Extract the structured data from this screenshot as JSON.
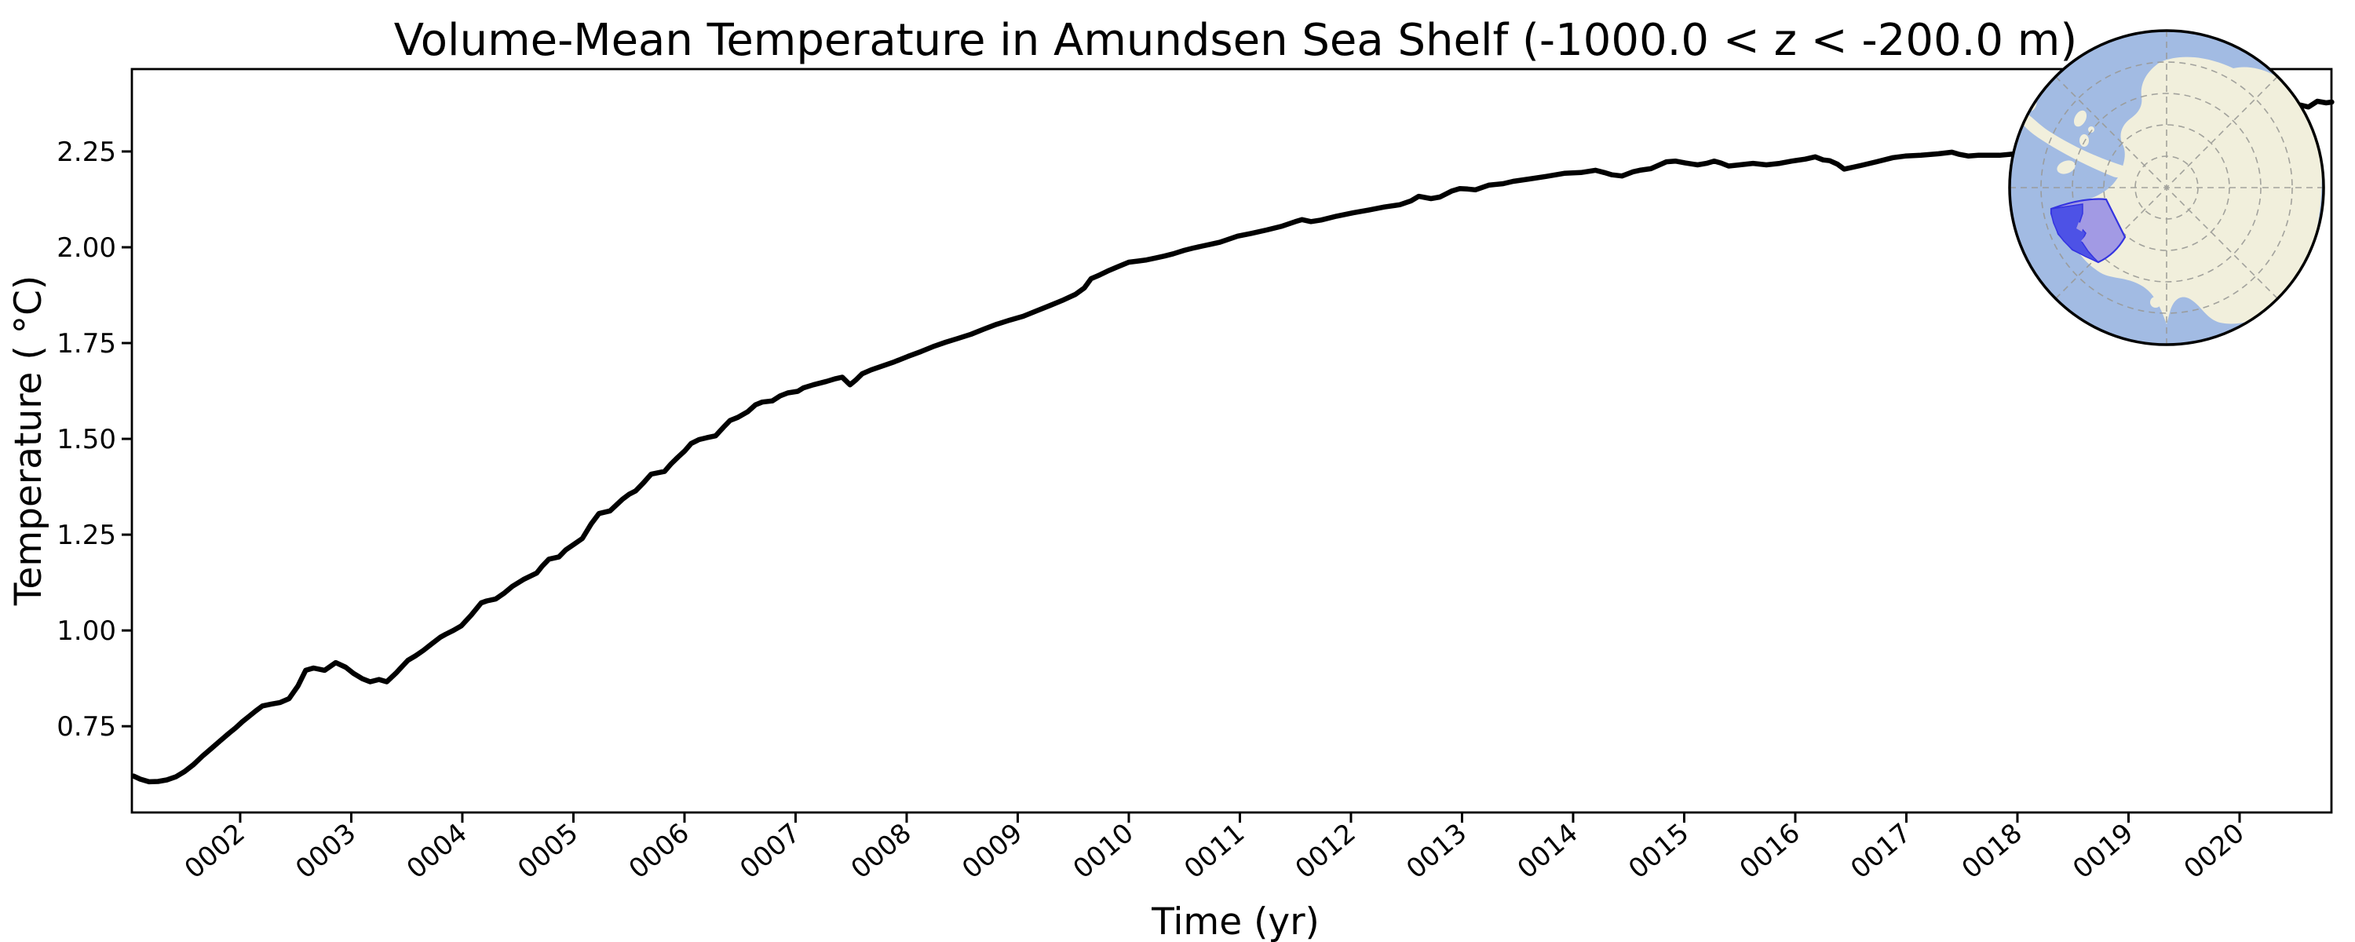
{
  "figure": {
    "background": "#ffffff",
    "kind": "matplotlib-style time-series figure with polar inset map"
  },
  "chart_data": {
    "type": "line",
    "title": "Volume-Mean Temperature in Amundsen Sea Shelf (-1000.0 < z < -200.0 m)",
    "xlabel": "Time (yr)",
    "ylabel": "Temperature ( °C)",
    "grid": false,
    "legend": "none",
    "xlim": [
      1.025,
      20.827
    ],
    "ylim": [
      0.525,
      2.465
    ],
    "x_ticks": [
      2,
      3,
      4,
      5,
      6,
      7,
      8,
      9,
      10,
      11,
      12,
      13,
      14,
      15,
      16,
      17,
      18,
      19,
      20
    ],
    "x_tick_labels": [
      "0002",
      "0003",
      "0004",
      "0005",
      "0006",
      "0007",
      "0008",
      "0009",
      "0010",
      "0011",
      "0012",
      "0013",
      "0014",
      "0015",
      "0016",
      "0017",
      "0018",
      "0019",
      "0020"
    ],
    "x_tick_rotation_deg": -40,
    "y_ticks": [
      0.75,
      1.0,
      1.25,
      1.5,
      1.75,
      2.0,
      2.25
    ],
    "y_tick_labels": [
      "0.75",
      "1.00",
      "1.25",
      "1.50",
      "1.75",
      "2.00",
      "2.25"
    ],
    "line_color": "#000000",
    "line_width": 6.5,
    "series": [
      {
        "name": "volume-mean temperature",
        "units": "degC",
        "points": [
          [
            1.04,
            0.62
          ],
          [
            1.1,
            0.612
          ],
          [
            1.18,
            0.605
          ],
          [
            1.26,
            0.606
          ],
          [
            1.34,
            0.61
          ],
          [
            1.42,
            0.618
          ],
          [
            1.5,
            0.632
          ],
          [
            1.58,
            0.65
          ],
          [
            1.66,
            0.672
          ],
          [
            1.74,
            0.692
          ],
          [
            1.82,
            0.712
          ],
          [
            1.9,
            0.732
          ],
          [
            1.96,
            0.746
          ],
          [
            2.02,
            0.762
          ],
          [
            2.08,
            0.776
          ],
          [
            2.14,
            0.79
          ],
          [
            2.2,
            0.803
          ],
          [
            2.28,
            0.808
          ],
          [
            2.36,
            0.812
          ],
          [
            2.44,
            0.822
          ],
          [
            2.52,
            0.855
          ],
          [
            2.59,
            0.896
          ],
          [
            2.66,
            0.902
          ],
          [
            2.76,
            0.896
          ],
          [
            2.86,
            0.916
          ],
          [
            2.95,
            0.904
          ],
          [
            3.02,
            0.888
          ],
          [
            3.1,
            0.874
          ],
          [
            3.17,
            0.866
          ],
          [
            3.25,
            0.872
          ],
          [
            3.32,
            0.866
          ],
          [
            3.4,
            0.888
          ],
          [
            3.51,
            0.922
          ],
          [
            3.58,
            0.934
          ],
          [
            3.65,
            0.948
          ],
          [
            3.72,
            0.964
          ],
          [
            3.8,
            0.982
          ],
          [
            3.85,
            0.99
          ],
          [
            3.92,
            1.0
          ],
          [
            3.99,
            1.012
          ],
          [
            4.08,
            1.04
          ],
          [
            4.17,
            1.072
          ],
          [
            4.22,
            1.077
          ],
          [
            4.3,
            1.082
          ],
          [
            4.38,
            1.098
          ],
          [
            4.45,
            1.115
          ],
          [
            4.55,
            1.133
          ],
          [
            4.67,
            1.15
          ],
          [
            4.72,
            1.168
          ],
          [
            4.78,
            1.186
          ],
          [
            4.87,
            1.192
          ],
          [
            4.93,
            1.21
          ],
          [
            5.0,
            1.224
          ],
          [
            5.08,
            1.24
          ],
          [
            5.16,
            1.278
          ],
          [
            5.23,
            1.305
          ],
          [
            5.33,
            1.312
          ],
          [
            5.44,
            1.342
          ],
          [
            5.5,
            1.355
          ],
          [
            5.56,
            1.364
          ],
          [
            5.63,
            1.385
          ],
          [
            5.7,
            1.408
          ],
          [
            5.82,
            1.415
          ],
          [
            5.88,
            1.435
          ],
          [
            5.94,
            1.452
          ],
          [
            6.0,
            1.468
          ],
          [
            6.06,
            1.488
          ],
          [
            6.13,
            1.498
          ],
          [
            6.2,
            1.503
          ],
          [
            6.28,
            1.508
          ],
          [
            6.35,
            1.53
          ],
          [
            6.41,
            1.548
          ],
          [
            6.48,
            1.556
          ],
          [
            6.57,
            1.571
          ],
          [
            6.64,
            1.589
          ],
          [
            6.7,
            1.596
          ],
          [
            6.79,
            1.599
          ],
          [
            6.86,
            1.612
          ],
          [
            6.93,
            1.62
          ],
          [
            7.02,
            1.624
          ],
          [
            7.07,
            1.633
          ],
          [
            7.16,
            1.641
          ],
          [
            7.28,
            1.65
          ],
          [
            7.36,
            1.657
          ],
          [
            7.42,
            1.661
          ],
          [
            7.49,
            1.641
          ],
          [
            7.54,
            1.653
          ],
          [
            7.6,
            1.67
          ],
          [
            7.68,
            1.68
          ],
          [
            7.77,
            1.689
          ],
          [
            7.89,
            1.701
          ],
          [
            8.01,
            1.715
          ],
          [
            8.13,
            1.728
          ],
          [
            8.25,
            1.742
          ],
          [
            8.35,
            1.752
          ],
          [
            8.46,
            1.762
          ],
          [
            8.58,
            1.773
          ],
          [
            8.7,
            1.787
          ],
          [
            8.81,
            1.799
          ],
          [
            8.93,
            1.81
          ],
          [
            9.05,
            1.82
          ],
          [
            9.17,
            1.834
          ],
          [
            9.29,
            1.848
          ],
          [
            9.4,
            1.861
          ],
          [
            9.52,
            1.877
          ],
          [
            9.6,
            1.894
          ],
          [
            9.66,
            1.918
          ],
          [
            9.74,
            1.928
          ],
          [
            9.81,
            1.938
          ],
          [
            9.9,
            1.949
          ],
          [
            10.0,
            1.961
          ],
          [
            10.08,
            1.964
          ],
          [
            10.16,
            1.967
          ],
          [
            10.24,
            1.972
          ],
          [
            10.32,
            1.977
          ],
          [
            10.4,
            1.983
          ],
          [
            10.5,
            1.992
          ],
          [
            10.58,
            1.998
          ],
          [
            10.66,
            2.003
          ],
          [
            10.74,
            2.008
          ],
          [
            10.82,
            2.013
          ],
          [
            10.9,
            2.021
          ],
          [
            10.98,
            2.029
          ],
          [
            11.1,
            2.036
          ],
          [
            11.24,
            2.045
          ],
          [
            11.38,
            2.055
          ],
          [
            11.5,
            2.067
          ],
          [
            11.56,
            2.072
          ],
          [
            11.64,
            2.067
          ],
          [
            11.73,
            2.071
          ],
          [
            11.87,
            2.081
          ],
          [
            12.02,
            2.09
          ],
          [
            12.16,
            2.097
          ],
          [
            12.3,
            2.105
          ],
          [
            12.44,
            2.111
          ],
          [
            12.54,
            2.121
          ],
          [
            12.61,
            2.133
          ],
          [
            12.72,
            2.127
          ],
          [
            12.8,
            2.131
          ],
          [
            12.91,
            2.147
          ],
          [
            12.98,
            2.153
          ],
          [
            13.05,
            2.152
          ],
          [
            13.12,
            2.15
          ],
          [
            13.24,
            2.162
          ],
          [
            13.37,
            2.166
          ],
          [
            13.46,
            2.172
          ],
          [
            13.6,
            2.178
          ],
          [
            13.76,
            2.185
          ],
          [
            13.92,
            2.193
          ],
          [
            14.07,
            2.195
          ],
          [
            14.2,
            2.201
          ],
          [
            14.28,
            2.195
          ],
          [
            14.35,
            2.189
          ],
          [
            14.44,
            2.186
          ],
          [
            14.54,
            2.197
          ],
          [
            14.6,
            2.201
          ],
          [
            14.7,
            2.205
          ],
          [
            14.84,
            2.223
          ],
          [
            14.92,
            2.225
          ],
          [
            15.01,
            2.22
          ],
          [
            15.12,
            2.215
          ],
          [
            15.2,
            2.219
          ],
          [
            15.27,
            2.225
          ],
          [
            15.33,
            2.22
          ],
          [
            15.4,
            2.212
          ],
          [
            15.5,
            2.215
          ],
          [
            15.62,
            2.219
          ],
          [
            15.74,
            2.215
          ],
          [
            15.86,
            2.219
          ],
          [
            15.97,
            2.225
          ],
          [
            16.09,
            2.23
          ],
          [
            16.18,
            2.236
          ],
          [
            16.25,
            2.228
          ],
          [
            16.31,
            2.226
          ],
          [
            16.38,
            2.217
          ],
          [
            16.44,
            2.204
          ],
          [
            16.52,
            2.209
          ],
          [
            16.6,
            2.214
          ],
          [
            16.73,
            2.223
          ],
          [
            16.88,
            2.234
          ],
          [
            16.99,
            2.238
          ],
          [
            17.13,
            2.24
          ],
          [
            17.29,
            2.244
          ],
          [
            17.41,
            2.248
          ],
          [
            17.47,
            2.243
          ],
          [
            17.56,
            2.238
          ],
          [
            17.65,
            2.24
          ],
          [
            17.74,
            2.24
          ],
          [
            17.84,
            2.24
          ],
          [
            17.95,
            2.243
          ],
          [
            18.1,
            2.25
          ],
          [
            18.3,
            2.26
          ],
          [
            18.5,
            2.271
          ],
          [
            18.7,
            2.282
          ],
          [
            18.9,
            2.294
          ],
          [
            19.1,
            2.306
          ],
          [
            19.3,
            2.318
          ],
          [
            19.5,
            2.329
          ],
          [
            19.7,
            2.34
          ],
          [
            19.9,
            2.351
          ],
          [
            20.1,
            2.36
          ],
          [
            20.3,
            2.366
          ],
          [
            20.45,
            2.369
          ],
          [
            20.55,
            2.371
          ],
          [
            20.62,
            2.366
          ],
          [
            20.7,
            2.381
          ],
          [
            20.78,
            2.377
          ],
          [
            20.83,
            2.379
          ]
        ]
      }
    ]
  },
  "inset_map": {
    "description": "South-polar stereographic locator map with Amundsen Sea Shelf region highlighted",
    "ocean_color": "#a2bbe3",
    "land_color": "#f1efdc",
    "graticule_color": "#9a9a96",
    "region_fill_light": "#a29ae4",
    "region_fill_dark": "#4d52e6",
    "region_border_color": "#3434e0",
    "border_color": "#000000"
  },
  "axes_style": {
    "spine_color": "#000000",
    "tick_color": "#000000",
    "text_color": "#000000"
  }
}
